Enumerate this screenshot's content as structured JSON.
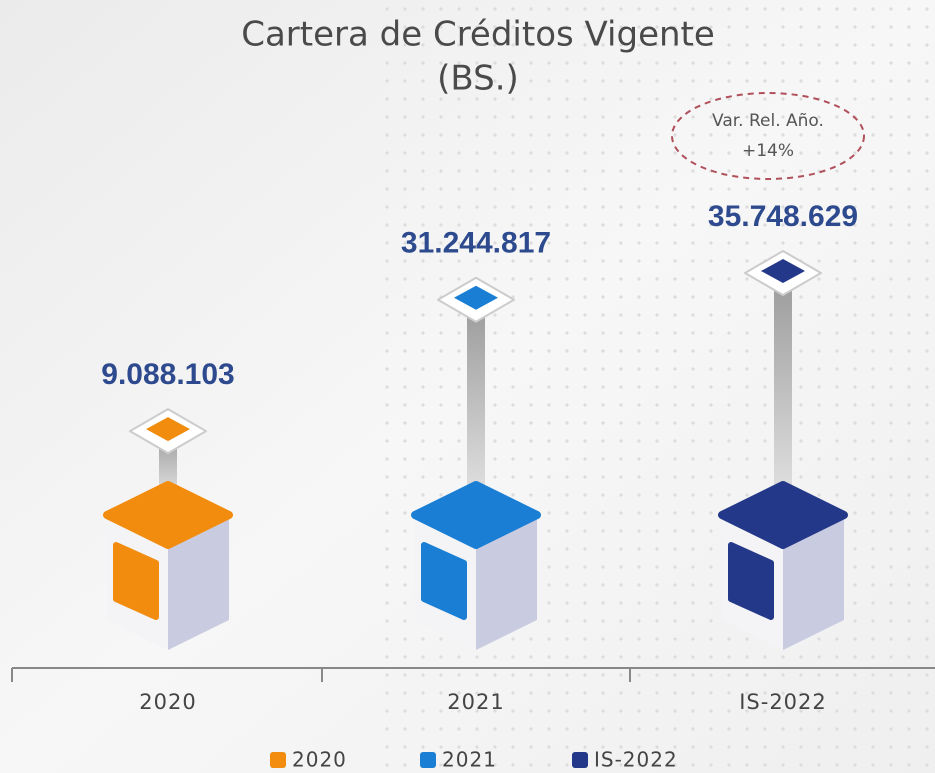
{
  "chart_data": {
    "type": "bar",
    "title": "Cartera de Créditos Vigente",
    "subtitle": "(BS.)",
    "annotations": [
      "Var. Rel. Año.",
      "+14%"
    ],
    "categories": [
      "2020",
      "2021",
      "IS-2022"
    ],
    "values": [
      9088103,
      31244817,
      35748629
    ],
    "value_labels": [
      "9.088.103",
      "31.244.817",
      "35.748.629"
    ],
    "colors": [
      "#f28c0f",
      "#1a7fd4",
      "#24388a"
    ]
  }
}
